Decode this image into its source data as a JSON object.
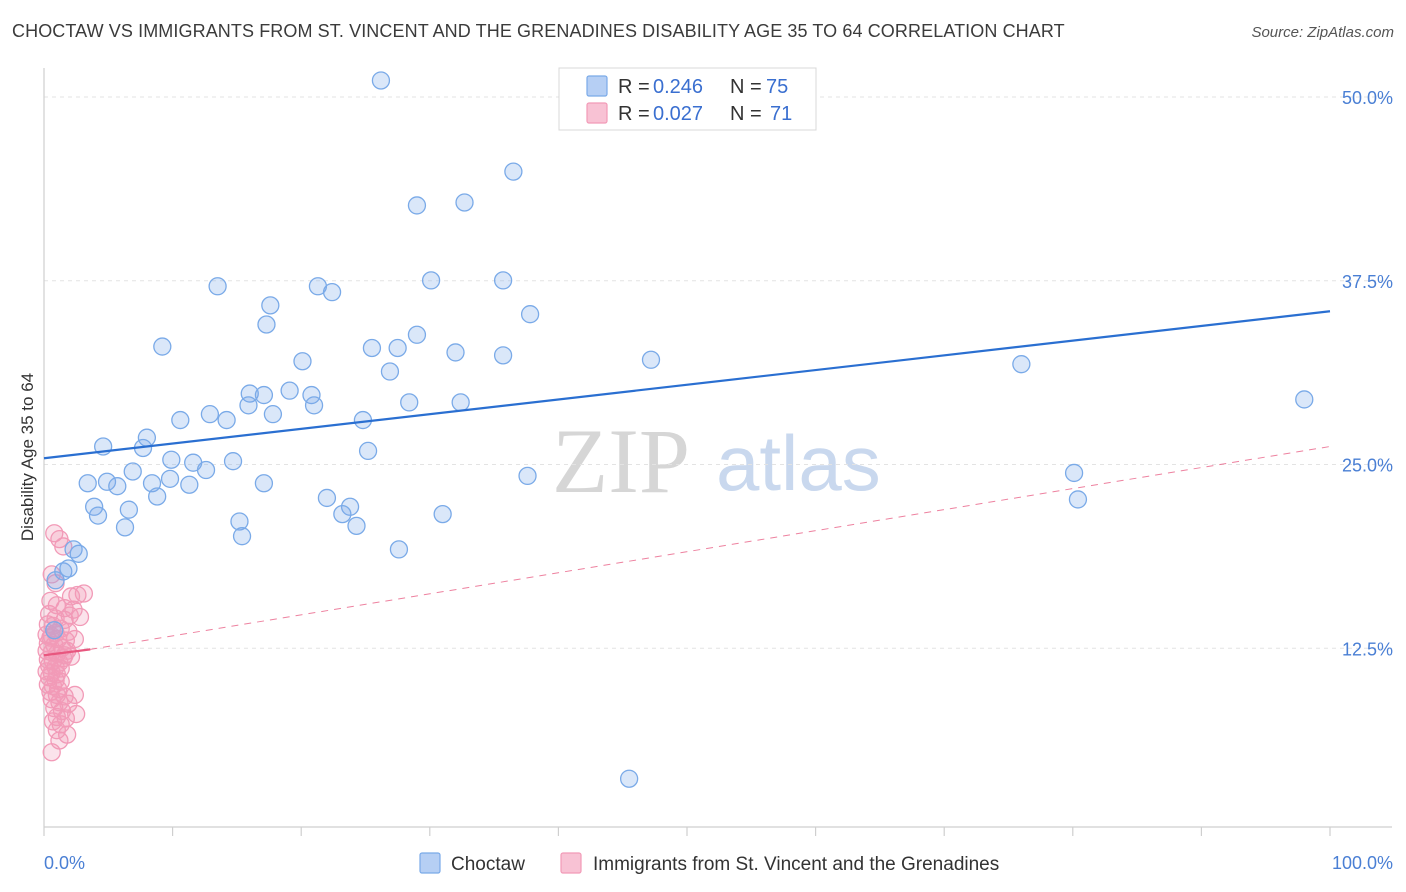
{
  "header": {
    "title": "CHOCTAW VS IMMIGRANTS FROM ST. VINCENT AND THE GRENADINES DISABILITY AGE 35 TO 64 CORRELATION CHART",
    "source": "Source: ZipAtlas.com"
  },
  "watermark": {
    "zip": "ZIP",
    "atlas": "atlas"
  },
  "legend": {
    "rows": [
      {
        "r_label": "R = ",
        "r_value": "0.246",
        "n_label": "N = ",
        "n_value": "75"
      },
      {
        "r_label": "R = ",
        "r_value": "0.027",
        "n_label": "N = ",
        "n_value": "71"
      }
    ]
  },
  "chart_data": {
    "type": "scatter",
    "title": "CHOCTAW VS IMMIGRANTS FROM ST. VINCENT AND THE GRENADINES DISABILITY AGE 35 TO 64 CORRELATION CHART",
    "xlabel": "",
    "ylabel": "Disability Age 35 to 64",
    "xlim": [
      0,
      100
    ],
    "ylim": [
      0,
      52
    ],
    "x_tick_labels": [
      "0.0%",
      "100.0%"
    ],
    "y_ticks": [
      12.5,
      25.0,
      37.5,
      50.0
    ],
    "y_tick_labels": [
      "12.5%",
      "25.0%",
      "37.5%",
      "50.0%"
    ],
    "grid": true,
    "legend_position": "top-center",
    "colors": {
      "choctaw": "#7aaae8",
      "choctaw_line": "#2a6fd1",
      "svg_immigrants": "#f29ab7",
      "svg_line": "#e8577f"
    },
    "series": [
      {
        "name": "Choctaw",
        "r": 0.246,
        "n": 75,
        "trend": {
          "x": [
            0,
            100
          ],
          "y": [
            24.2,
            34.2
          ],
          "style": "solid"
        },
        "points": [
          [
            26.2,
            49.9
          ],
          [
            36.5,
            43.7
          ],
          [
            29.0,
            41.4
          ],
          [
            32.7,
            41.6
          ],
          [
            13.5,
            35.9
          ],
          [
            21.3,
            35.9
          ],
          [
            22.4,
            35.5
          ],
          [
            17.6,
            34.6
          ],
          [
            30.1,
            36.3
          ],
          [
            35.7,
            36.3
          ],
          [
            37.8,
            34.0
          ],
          [
            17.3,
            33.3
          ],
          [
            29.0,
            32.6
          ],
          [
            25.5,
            31.7
          ],
          [
            32.0,
            31.4
          ],
          [
            27.5,
            31.7
          ],
          [
            35.7,
            31.2
          ],
          [
            47.2,
            30.9
          ],
          [
            9.2,
            31.8
          ],
          [
            20.1,
            30.8
          ],
          [
            26.9,
            30.1
          ],
          [
            16.0,
            28.6
          ],
          [
            17.1,
            28.5
          ],
          [
            15.9,
            27.8
          ],
          [
            19.1,
            28.8
          ],
          [
            20.8,
            28.5
          ],
          [
            21.0,
            27.8
          ],
          [
            28.4,
            28.0
          ],
          [
            32.4,
            28.0
          ],
          [
            76.0,
            30.6
          ],
          [
            98.0,
            28.2
          ],
          [
            12.9,
            27.2
          ],
          [
            10.6,
            26.8
          ],
          [
            14.2,
            26.8
          ],
          [
            17.8,
            27.2
          ],
          [
            24.8,
            26.8
          ],
          [
            8.0,
            25.6
          ],
          [
            4.6,
            25.0
          ],
          [
            7.7,
            24.9
          ],
          [
            9.9,
            24.1
          ],
          [
            11.6,
            23.9
          ],
          [
            6.9,
            23.3
          ],
          [
            14.7,
            24.0
          ],
          [
            25.2,
            24.7
          ],
          [
            12.6,
            23.4
          ],
          [
            4.9,
            22.6
          ],
          [
            5.7,
            22.3
          ],
          [
            8.4,
            22.5
          ],
          [
            9.8,
            22.8
          ],
          [
            11.3,
            22.4
          ],
          [
            17.1,
            22.5
          ],
          [
            37.6,
            23.0
          ],
          [
            80.1,
            23.2
          ],
          [
            8.8,
            21.6
          ],
          [
            3.4,
            22.5
          ],
          [
            22.0,
            21.5
          ],
          [
            23.8,
            20.9
          ],
          [
            23.2,
            20.4
          ],
          [
            3.9,
            20.9
          ],
          [
            6.6,
            20.7
          ],
          [
            4.2,
            20.3
          ],
          [
            15.2,
            19.9
          ],
          [
            24.3,
            19.6
          ],
          [
            31.0,
            20.4
          ],
          [
            6.3,
            19.5
          ],
          [
            15.4,
            18.9
          ],
          [
            27.6,
            18.0
          ],
          [
            2.3,
            18.0
          ],
          [
            2.7,
            17.7
          ],
          [
            1.5,
            16.5
          ],
          [
            1.9,
            16.7
          ],
          [
            0.9,
            15.9
          ],
          [
            80.4,
            21.4
          ],
          [
            0.8,
            12.5
          ],
          [
            45.5,
            2.4
          ]
        ]
      },
      {
        "name": "Immigrants from St. Vincent and the Grenadines",
        "r": 0.027,
        "n": 71,
        "trend": {
          "x": [
            0,
            3.6,
            100
          ],
          "y": [
            10.8,
            11.2,
            25.0
          ],
          "style": "dashed-after-data"
        },
        "points": [
          [
            0.8,
            19.1
          ],
          [
            1.2,
            18.7
          ],
          [
            1.5,
            18.2
          ],
          [
            0.6,
            16.3
          ],
          [
            0.9,
            15.7
          ],
          [
            2.1,
            14.8
          ],
          [
            2.6,
            14.9
          ],
          [
            3.1,
            15.0
          ],
          [
            0.5,
            14.5
          ],
          [
            1.0,
            14.2
          ],
          [
            1.6,
            14.0
          ],
          [
            2.3,
            13.9
          ],
          [
            0.4,
            13.6
          ],
          [
            0.9,
            13.3
          ],
          [
            1.6,
            13.2
          ],
          [
            2.8,
            13.4
          ],
          [
            0.3,
            12.9
          ],
          [
            0.7,
            12.8
          ],
          [
            1.3,
            12.6
          ],
          [
            1.9,
            12.4
          ],
          [
            0.2,
            12.2
          ],
          [
            0.6,
            12.1
          ],
          [
            1.1,
            11.9
          ],
          [
            1.7,
            11.8
          ],
          [
            2.4,
            11.9
          ],
          [
            0.3,
            11.6
          ],
          [
            0.8,
            11.5
          ],
          [
            1.4,
            11.3
          ],
          [
            0.2,
            11.1
          ],
          [
            0.6,
            11.0
          ],
          [
            1.0,
            10.9
          ],
          [
            1.6,
            10.8
          ],
          [
            2.1,
            10.7
          ],
          [
            0.3,
            10.5
          ],
          [
            0.7,
            10.4
          ],
          [
            1.2,
            10.3
          ],
          [
            0.4,
            10.1
          ],
          [
            0.9,
            10.0
          ],
          [
            1.3,
            9.9
          ],
          [
            0.2,
            9.7
          ],
          [
            0.6,
            9.6
          ],
          [
            1.0,
            9.5
          ],
          [
            0.4,
            9.3
          ],
          [
            0.9,
            9.1
          ],
          [
            1.3,
            9.0
          ],
          [
            0.3,
            8.8
          ],
          [
            0.7,
            8.7
          ],
          [
            1.1,
            8.5
          ],
          [
            0.5,
            8.3
          ],
          [
            1.0,
            8.1
          ],
          [
            1.6,
            8.0
          ],
          [
            2.4,
            8.1
          ],
          [
            0.6,
            7.8
          ],
          [
            1.2,
            7.6
          ],
          [
            1.9,
            7.5
          ],
          [
            0.8,
            7.2
          ],
          [
            1.4,
            7.0
          ],
          [
            2.5,
            6.8
          ],
          [
            1.0,
            6.6
          ],
          [
            1.7,
            6.5
          ],
          [
            0.7,
            6.3
          ],
          [
            1.3,
            6.1
          ],
          [
            1.0,
            5.7
          ],
          [
            1.8,
            5.4
          ],
          [
            1.2,
            5.0
          ],
          [
            0.6,
            4.2
          ],
          [
            2.0,
            13.5
          ],
          [
            0.5,
            12.0
          ],
          [
            1.5,
            10.6
          ],
          [
            0.9,
            12.3
          ],
          [
            1.8,
            11.1
          ]
        ]
      }
    ]
  },
  "bottom_legend": {
    "items": [
      {
        "label": "Choctaw"
      },
      {
        "label": "Immigrants from St. Vincent and the Grenadines"
      }
    ]
  },
  "axes": {
    "ylabel": "Disability Age 35 to 64",
    "x_min_label": "0.0%",
    "x_max_label": "100.0%"
  }
}
